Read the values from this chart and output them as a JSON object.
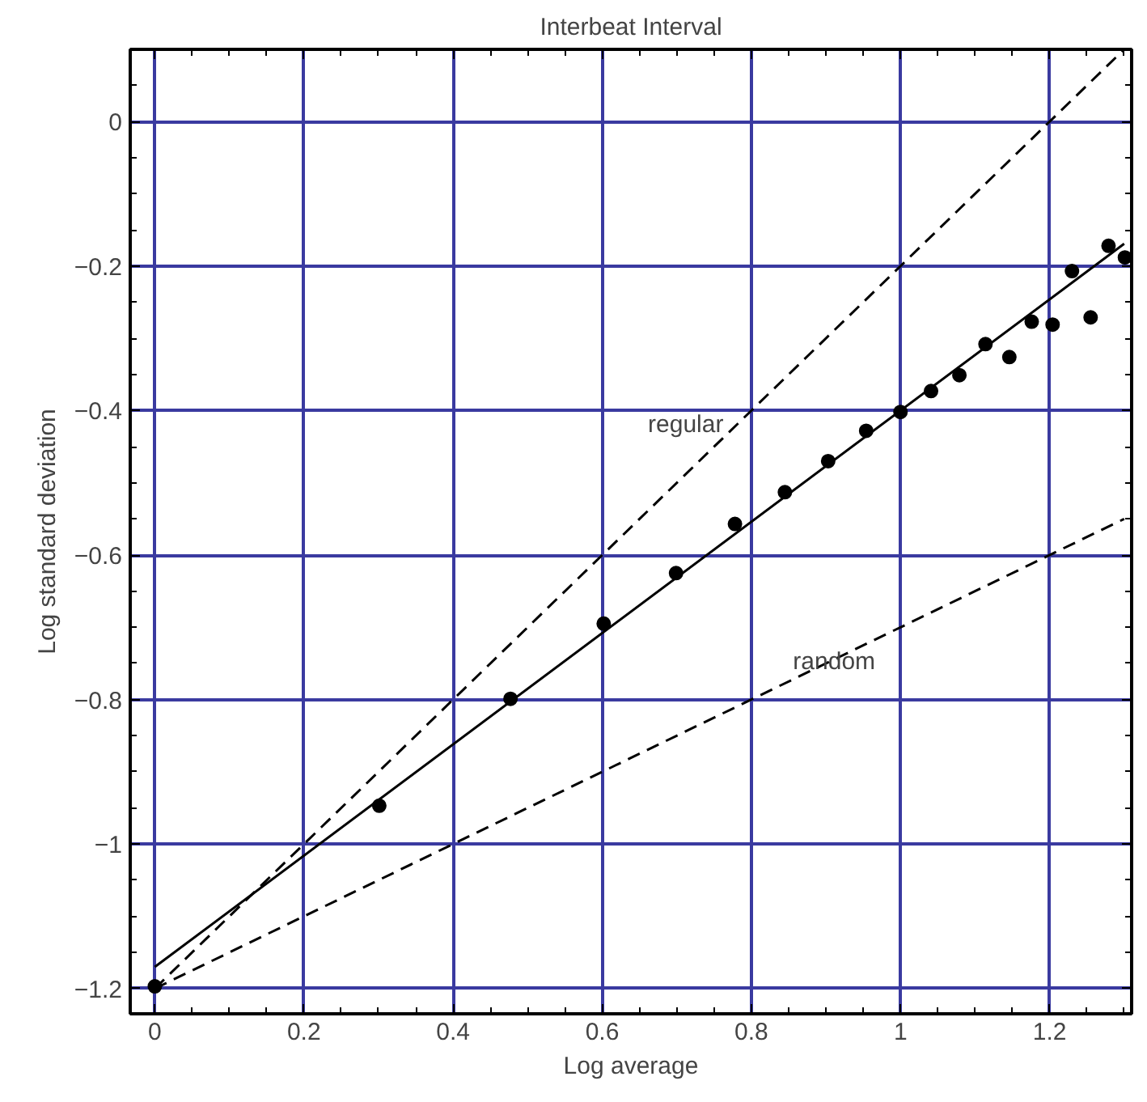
{
  "chart_data": {
    "type": "scatter",
    "title": "Interbeat Interval",
    "xlabel": "Log average",
    "ylabel": "Log standard deviation",
    "xlim": [
      -0.033,
      1.31
    ],
    "ylim": [
      -1.235,
      0.1
    ],
    "xticks": [
      0,
      0.2,
      0.4,
      0.6,
      0.8,
      1,
      1.2
    ],
    "yticks": [
      -1.2,
      -1,
      -0.8,
      -0.6,
      -0.4,
      -0.2,
      0
    ],
    "grid": true,
    "series": [
      {
        "color": "#000000",
        "marker": "circle",
        "x": [
          0,
          0.301,
          0.477,
          0.602,
          0.699,
          0.778,
          0.845,
          0.903,
          0.954,
          1.0,
          1.041,
          1.079,
          1.114,
          1.146,
          1.176,
          1.204,
          1.23,
          1.255,
          1.279,
          1.301
        ],
        "values": [
          -1.197,
          -0.947,
          -0.799,
          -0.695,
          -0.625,
          -0.557,
          -0.513,
          -0.47,
          -0.428,
          -0.402,
          -0.373,
          -0.351,
          -0.308,
          -0.326,
          -0.277,
          -0.281,
          -0.207,
          -0.271,
          -0.172,
          -0.188
        ]
      },
      {
        "type": "line",
        "color": "#000000",
        "line_style": "solid",
        "x": [
          0,
          1.3
        ],
        "values": [
          -1.17,
          -0.169
        ]
      },
      {
        "type": "line",
        "name": "regular",
        "color": "#000000",
        "line_style": "dashed",
        "x": [
          0,
          1.3
        ],
        "values": [
          -1.2,
          0.1
        ]
      },
      {
        "type": "line",
        "name": "random",
        "color": "#000000",
        "line_style": "dashed",
        "x": [
          0,
          1.3
        ],
        "values": [
          -1.2,
          -0.55
        ]
      }
    ]
  }
}
